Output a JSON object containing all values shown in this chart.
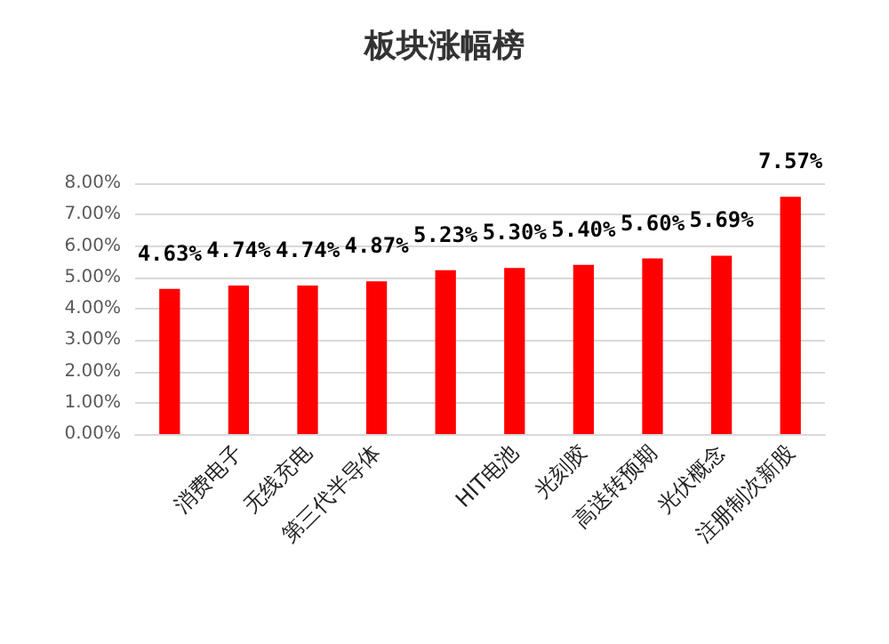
{
  "chart_data": {
    "type": "bar",
    "title": "板块涨幅榜",
    "categories": [
      null,
      "消费电子",
      "无线充电",
      "第三代半导体",
      null,
      "HIT电池",
      "光刻胶",
      "高送转预期",
      "光伏概念",
      "注册制次新股"
    ],
    "values": [
      4.63,
      4.74,
      4.74,
      4.87,
      5.23,
      5.3,
      5.4,
      5.6,
      5.69,
      7.57
    ],
    "color": "#ff0000",
    "ylim": [
      0,
      8
    ],
    "yticks": [
      {
        "value": 0,
        "label": "0.00%"
      },
      {
        "value": 1,
        "label": "1.00%"
      },
      {
        "value": 2,
        "label": "2.00%"
      },
      {
        "value": 3,
        "label": "3.00%"
      },
      {
        "value": 4,
        "label": "4.00%"
      },
      {
        "value": 5,
        "label": "5.00%"
      },
      {
        "value": 6,
        "label": "6.00%"
      },
      {
        "value": 7,
        "label": "7.00%"
      },
      {
        "value": 8,
        "label": "8.00%"
      }
    ],
    "value_labels": [
      "4.63%",
      "4.74%",
      "4.74%",
      "4.87%",
      "5.23%",
      "5.30%",
      "5.40%",
      "5.60%",
      "5.69%",
      "7.57%"
    ],
    "grid": "y"
  }
}
